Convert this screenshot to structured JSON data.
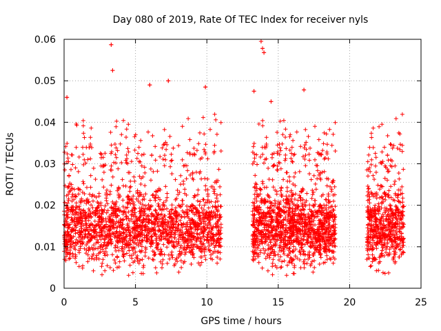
{
  "chart_data": {
    "type": "scatter",
    "title": "Day 080 of 2019, Rate Of TEC Index for receiver nyls",
    "xlabel": "GPS time / hours",
    "ylabel": "ROTI / TECUs",
    "xlim": [
      0,
      25
    ],
    "ylim": [
      0,
      0.06
    ],
    "x_ticks": [
      0,
      5,
      10,
      15,
      20,
      25
    ],
    "x_tick_labels": [
      "0",
      "5",
      "10",
      "15",
      "20",
      "25"
    ],
    "y_ticks": [
      0,
      0.01,
      0.02,
      0.03,
      0.04,
      0.05,
      0.06
    ],
    "y_tick_labels": [
      "0",
      "0.01",
      "0.02",
      "0.03",
      "0.04",
      "0.05",
      "0.06"
    ],
    "grid": true,
    "marker": "+",
    "color": "#ff0000",
    "observation_segments": [
      {
        "start": 0.0,
        "end": 11.0
      },
      {
        "start": 13.2,
        "end": 19.0
      },
      {
        "start": 21.2,
        "end": 23.8
      }
    ],
    "typical_range": [
      0.005,
      0.025
    ],
    "notable_points": [
      {
        "x": 3.3,
        "y": 0.0587
      },
      {
        "x": 3.4,
        "y": 0.0525
      },
      {
        "x": 13.8,
        "y": 0.0595
      },
      {
        "x": 13.9,
        "y": 0.0578
      },
      {
        "x": 14.0,
        "y": 0.0568
      },
      {
        "x": 0.2,
        "y": 0.046
      },
      {
        "x": 6.0,
        "y": 0.049
      },
      {
        "x": 7.3,
        "y": 0.05
      },
      {
        "x": 9.9,
        "y": 0.0485
      },
      {
        "x": 16.8,
        "y": 0.0478
      },
      {
        "x": 13.3,
        "y": 0.0475
      },
      {
        "x": 14.5,
        "y": 0.045
      }
    ]
  }
}
